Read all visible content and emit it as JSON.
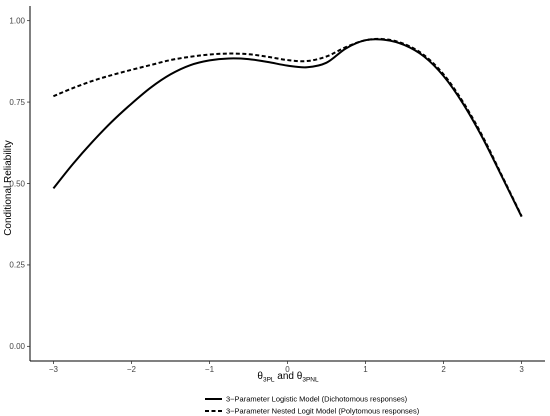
{
  "chart_data": {
    "type": "line",
    "title": "",
    "xlabel": {
      "base1": "θ",
      "sub1": "3PL",
      "mid": " and ",
      "base2": "θ",
      "sub2": "3PNL"
    },
    "ylabel": "Conditional Reliability",
    "xlim": [
      -3.3,
      3.3
    ],
    "ylim": [
      -0.045,
      1.045
    ],
    "x_ticks": [
      -3,
      -2,
      -1,
      0,
      1,
      2,
      3
    ],
    "x_tick_labels": [
      "−3",
      "−2",
      "−1",
      "0",
      "1",
      "2",
      "3"
    ],
    "y_ticks": [
      0.0,
      0.25,
      0.5,
      0.75,
      1.0
    ],
    "y_tick_labels": [
      "0.00",
      "0.25",
      "0.50",
      "0.75",
      "1.00"
    ],
    "grid": false,
    "legend_position": "bottom",
    "series": [
      {
        "name": "3−Parameter Logistic Model (Dichotomous responses)",
        "style": "solid",
        "color": "#000000",
        "x": [
          -3.0,
          -2.75,
          -2.5,
          -2.25,
          -2.0,
          -1.75,
          -1.5,
          -1.25,
          -1.0,
          -0.75,
          -0.5,
          -0.25,
          0.0,
          0.25,
          0.5,
          0.75,
          1.0,
          1.25,
          1.5,
          1.75,
          2.0,
          2.25,
          2.5,
          2.75,
          3.0
        ],
        "y": [
          0.485,
          0.56,
          0.628,
          0.69,
          0.745,
          0.795,
          0.835,
          0.863,
          0.878,
          0.884,
          0.882,
          0.873,
          0.862,
          0.857,
          0.871,
          0.915,
          0.94,
          0.941,
          0.925,
          0.89,
          0.83,
          0.745,
          0.64,
          0.52,
          0.398
        ]
      },
      {
        "name": "3−Parameter Nested Logit Model (Polytomous responses)",
        "style": "dashed",
        "color": "#000000",
        "x": [
          -3.0,
          -2.75,
          -2.5,
          -2.25,
          -2.0,
          -1.75,
          -1.5,
          -1.25,
          -1.0,
          -0.75,
          -0.5,
          -0.25,
          0.0,
          0.25,
          0.5,
          0.75,
          1.0,
          1.25,
          1.5,
          1.75,
          2.0,
          2.25,
          2.5,
          2.75,
          3.0
        ],
        "y": [
          0.768,
          0.793,
          0.815,
          0.833,
          0.849,
          0.864,
          0.879,
          0.889,
          0.896,
          0.899,
          0.897,
          0.889,
          0.879,
          0.876,
          0.89,
          0.919,
          0.94,
          0.943,
          0.928,
          0.894,
          0.835,
          0.75,
          0.645,
          0.523,
          0.4
        ]
      }
    ]
  }
}
